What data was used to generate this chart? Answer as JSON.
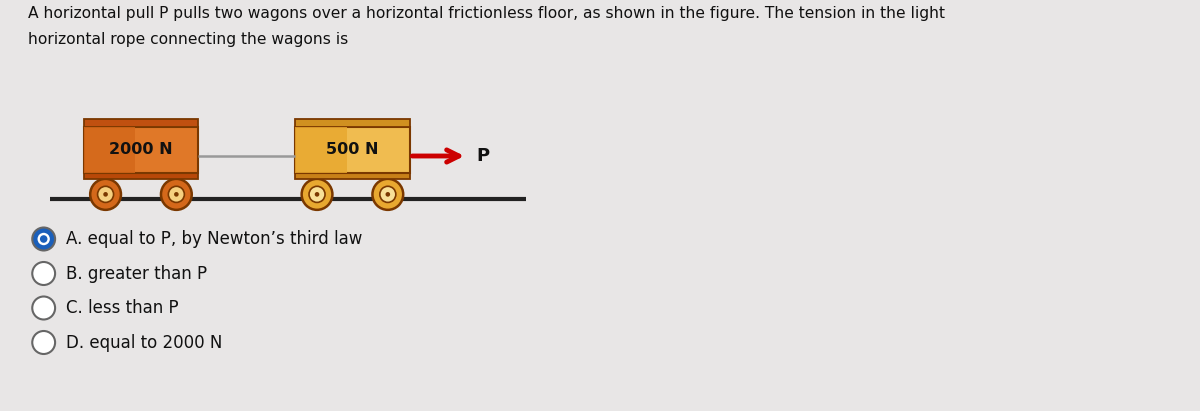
{
  "bg_color": "#e8e6e6",
  "question_text_line1": "A horizontal pull P pulls two wagons over a horizontal frictionless floor, as shown in the figure. The tension in the light",
  "question_text_line2": "horizontal rope connecting the wagons is",
  "wagon1_label": "2000 N",
  "wagon2_label": "500 N",
  "force_label": "P",
  "options": [
    {
      "label": "A. equal to P, by Newton’s third law",
      "selected": true
    },
    {
      "label": "B. greater than P",
      "selected": false
    },
    {
      "label": "C. less than P",
      "selected": false
    },
    {
      "label": "D. equal to 2000 N",
      "selected": false
    }
  ],
  "wagon1_body_main": "#d4681a",
  "wagon1_body_light": "#e07828",
  "wagon1_top": "#c05010",
  "wagon1_base": "#b84808",
  "wagon2_body_main": "#e8a830",
  "wagon2_body_light": "#f0bc50",
  "wagon2_top": "#d09020",
  "wagon2_base": "#c88018",
  "wagon_border": "#7a3800",
  "wheel_outer1": "#d4681a",
  "wheel_inner1": "#f5d080",
  "wheel_outer2": "#e8a830",
  "wheel_inner2": "#f8e098",
  "wheel_border": "#7a3800",
  "floor_color": "#222222",
  "rope_color": "#999999",
  "arrow_color": "#cc0000",
  "text_color": "#111111",
  "option_circle_fill_selected": "#1a5fbb",
  "option_circle_fill_unselected": "#ffffff",
  "option_circle_border": "#666666",
  "fig_width": 12.0,
  "fig_height": 4.11,
  "dpi": 100
}
